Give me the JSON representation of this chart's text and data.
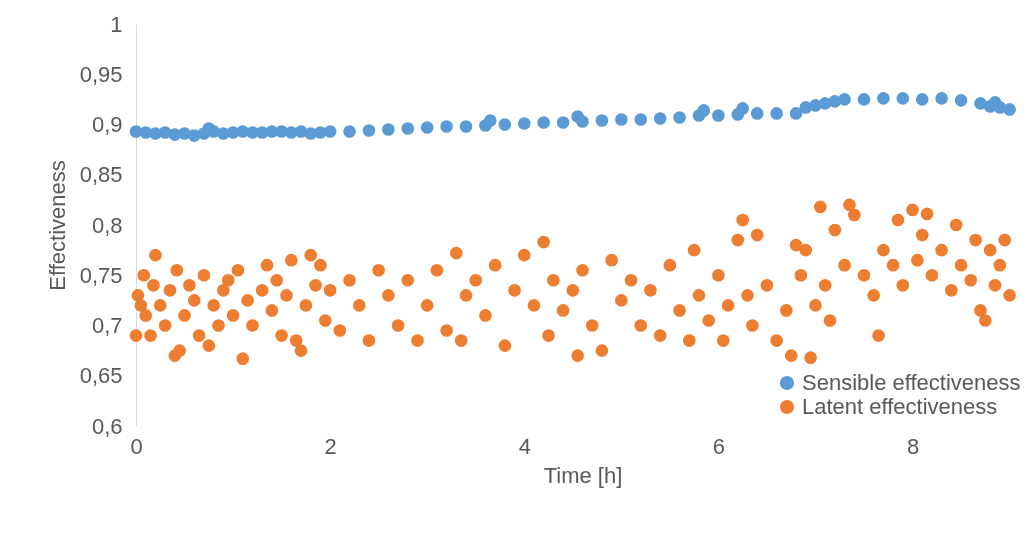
{
  "chart_data": {
    "type": "scatter",
    "xlabel": "Time [h]",
    "ylabel": "Effectiveness",
    "xlim": [
      0,
      9.2
    ],
    "xticks": [
      0,
      2,
      4,
      6,
      8
    ],
    "ylim": [
      0.6,
      1
    ],
    "yticks": [
      {
        "value": 0.6,
        "label": "0,6"
      },
      {
        "value": 0.65,
        "label": "0,65"
      },
      {
        "value": 0.7,
        "label": "0,7"
      },
      {
        "value": 0.75,
        "label": "0,75"
      },
      {
        "value": 0.8,
        "label": "0,8"
      },
      {
        "value": 0.85,
        "label": "0,85"
      },
      {
        "value": 0.9,
        "label": "0,9"
      },
      {
        "value": 0.95,
        "label": "0,95"
      },
      1
    ],
    "grid": false,
    "legend": "bottom right",
    "marker": "circle",
    "series": [
      {
        "name": "Sensible effectiveness",
        "color": "#5b9bd5",
        "x": [
          0,
          0.1,
          0.2,
          0.3,
          0.4,
          0.5,
          0.6,
          0.7,
          0.75,
          0.8,
          0.9,
          1.0,
          1.1,
          1.2,
          1.3,
          1.4,
          1.5,
          1.6,
          1.7,
          1.8,
          1.9,
          2.0,
          2.2,
          2.4,
          2.6,
          2.8,
          3.0,
          3.2,
          3.4,
          3.6,
          3.65,
          3.8,
          4.0,
          4.2,
          4.4,
          4.55,
          4.6,
          4.8,
          5.0,
          5.2,
          5.4,
          5.6,
          5.8,
          5.85,
          6.0,
          6.2,
          6.25,
          6.4,
          6.6,
          6.8,
          6.9,
          7.0,
          7.1,
          7.2,
          7.3,
          7.5,
          7.7,
          7.9,
          8.1,
          8.3,
          8.5,
          8.7,
          8.8,
          8.85,
          8.9,
          9.0
        ],
        "values": [
          0.893,
          0.892,
          0.891,
          0.892,
          0.89,
          0.891,
          0.889,
          0.891,
          0.896,
          0.893,
          0.891,
          0.892,
          0.893,
          0.892,
          0.892,
          0.893,
          0.893,
          0.892,
          0.893,
          0.891,
          0.892,
          0.893,
          0.893,
          0.894,
          0.895,
          0.896,
          0.897,
          0.898,
          0.898,
          0.899,
          0.904,
          0.9,
          0.901,
          0.902,
          0.902,
          0.908,
          0.903,
          0.904,
          0.905,
          0.905,
          0.906,
          0.907,
          0.909,
          0.914,
          0.909,
          0.91,
          0.916,
          0.911,
          0.911,
          0.911,
          0.917,
          0.919,
          0.921,
          0.923,
          0.925,
          0.925,
          0.926,
          0.926,
          0.925,
          0.926,
          0.924,
          0.921,
          0.918,
          0.922,
          0.917,
          0.915
        ]
      },
      {
        "name": "Latent effectiveness",
        "color": "#ed7d31",
        "x": [
          0,
          0.02,
          0.05,
          0.08,
          0.1,
          0.15,
          0.18,
          0.2,
          0.25,
          0.3,
          0.35,
          0.4,
          0.42,
          0.45,
          0.5,
          0.55,
          0.6,
          0.65,
          0.7,
          0.75,
          0.8,
          0.85,
          0.9,
          0.95,
          1.0,
          1.05,
          1.1,
          1.15,
          1.2,
          1.3,
          1.35,
          1.4,
          1.45,
          1.5,
          1.55,
          1.6,
          1.65,
          1.7,
          1.75,
          1.8,
          1.85,
          1.9,
          1.95,
          2.0,
          2.1,
          2.2,
          2.3,
          2.4,
          2.5,
          2.6,
          2.7,
          2.8,
          2.9,
          3.0,
          3.1,
          3.2,
          3.3,
          3.35,
          3.4,
          3.5,
          3.6,
          3.7,
          3.8,
          3.9,
          4.0,
          4.1,
          4.2,
          4.25,
          4.3,
          4.4,
          4.5,
          4.55,
          4.6,
          4.7,
          4.8,
          4.9,
          5.0,
          5.1,
          5.2,
          5.3,
          5.4,
          5.5,
          5.6,
          5.7,
          5.75,
          5.8,
          5.9,
          6.0,
          6.05,
          6.1,
          6.2,
          6.25,
          6.3,
          6.35,
          6.4,
          6.5,
          6.6,
          6.7,
          6.75,
          6.8,
          6.85,
          6.9,
          6.95,
          7.0,
          7.05,
          7.1,
          7.15,
          7.2,
          7.3,
          7.35,
          7.4,
          7.5,
          7.6,
          7.65,
          7.7,
          7.8,
          7.85,
          7.9,
          8.0,
          8.05,
          8.1,
          8.15,
          8.2,
          8.3,
          8.4,
          8.45,
          8.5,
          8.6,
          8.65,
          8.7,
          8.75,
          8.8,
          8.85,
          8.9,
          8.95,
          9.0
        ],
        "values": [
          0.69,
          0.73,
          0.72,
          0.75,
          0.71,
          0.69,
          0.74,
          0.77,
          0.72,
          0.7,
          0.735,
          0.67,
          0.755,
          0.675,
          0.71,
          0.74,
          0.725,
          0.69,
          0.75,
          0.68,
          0.72,
          0.7,
          0.735,
          0.745,
          0.71,
          0.755,
          0.667,
          0.725,
          0.7,
          0.735,
          0.76,
          0.715,
          0.745,
          0.69,
          0.73,
          0.765,
          0.685,
          0.675,
          0.72,
          0.77,
          0.74,
          0.76,
          0.705,
          0.735,
          0.695,
          0.745,
          0.72,
          0.685,
          0.755,
          0.73,
          0.7,
          0.745,
          0.685,
          0.72,
          0.755,
          0.695,
          0.772,
          0.685,
          0.73,
          0.745,
          0.71,
          0.76,
          0.68,
          0.735,
          0.77,
          0.72,
          0.783,
          0.69,
          0.745,
          0.715,
          0.735,
          0.67,
          0.755,
          0.7,
          0.675,
          0.765,
          0.725,
          0.745,
          0.7,
          0.735,
          0.69,
          0.76,
          0.715,
          0.685,
          0.775,
          0.73,
          0.705,
          0.75,
          0.685,
          0.72,
          0.785,
          0.805,
          0.73,
          0.7,
          0.79,
          0.74,
          0.685,
          0.715,
          0.67,
          0.78,
          0.75,
          0.775,
          0.668,
          0.72,
          0.818,
          0.74,
          0.705,
          0.795,
          0.76,
          0.82,
          0.81,
          0.75,
          0.73,
          0.69,
          0.775,
          0.76,
          0.805,
          0.74,
          0.815,
          0.765,
          0.79,
          0.811,
          0.75,
          0.775,
          0.735,
          0.8,
          0.76,
          0.745,
          0.785,
          0.715,
          0.705,
          0.775,
          0.74,
          0.76,
          0.785,
          0.73
        ]
      }
    ]
  }
}
